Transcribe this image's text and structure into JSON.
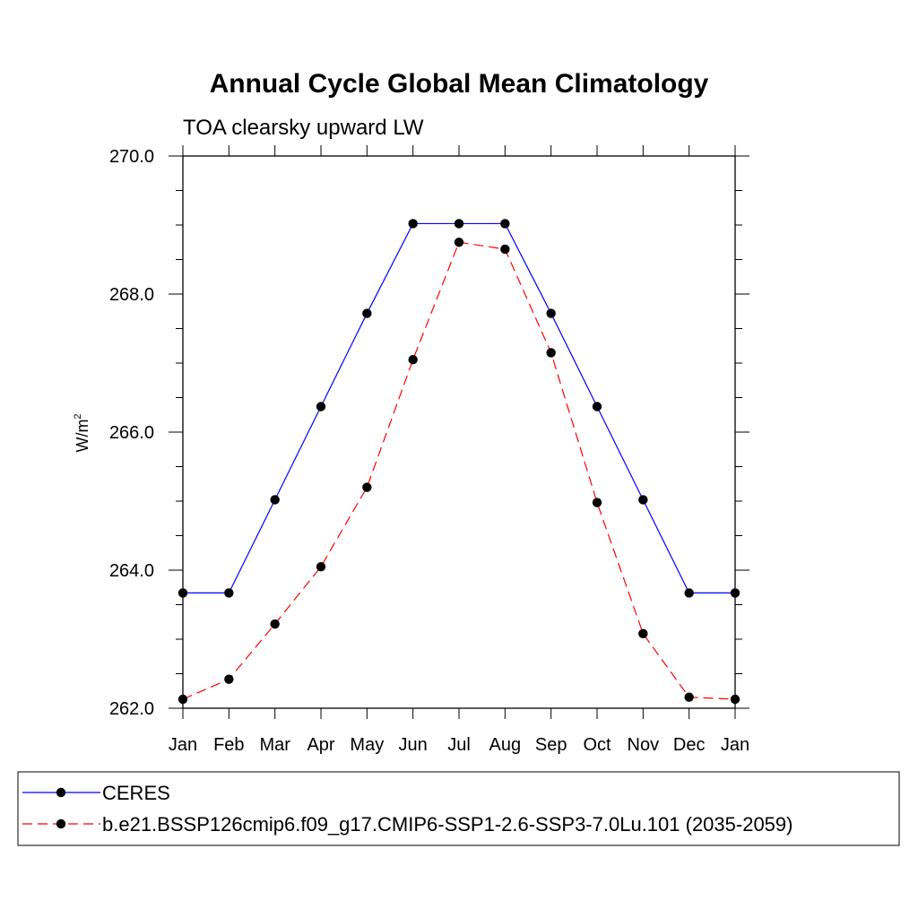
{
  "chart_data": {
    "type": "line",
    "title": "Annual Cycle Global Mean Climatology",
    "subtitle": "TOA clearsky upward LW",
    "ylabel_base": "W/m",
    "ylabel_exp": "2",
    "xlabel": "",
    "categories": [
      "Jan",
      "Feb",
      "Mar",
      "Apr",
      "May",
      "Jun",
      "Jul",
      "Aug",
      "Sep",
      "Oct",
      "Nov",
      "Dec",
      "Jan"
    ],
    "ylim": [
      262.0,
      270.0
    ],
    "yticks": [
      262.0,
      264.0,
      266.0,
      268.0,
      270.0
    ],
    "ytick_labels": [
      "262.0",
      "264.0",
      "266.0",
      "268.0",
      "270.0"
    ],
    "y_minor_step": 0.5,
    "grid": false,
    "legend_placement": "bottom",
    "series": [
      {
        "name": "CERES",
        "color": "#0000ff",
        "dash": "solid",
        "values": [
          263.67,
          263.67,
          265.02,
          266.37,
          267.72,
          269.02,
          269.02,
          269.02,
          267.72,
          266.37,
          265.02,
          263.67,
          263.67
        ]
      },
      {
        "name": "b.e21.BSSP126cmip6.f09_g17.CMIP6-SSP1-2.6-SSP3-7.0Lu.101 (2035-2059)",
        "color": "#ff0000",
        "dash": "dashed",
        "values": [
          262.13,
          262.42,
          263.22,
          264.05,
          265.2,
          267.05,
          268.75,
          268.65,
          267.15,
          264.98,
          263.08,
          262.16,
          262.13
        ]
      }
    ]
  }
}
